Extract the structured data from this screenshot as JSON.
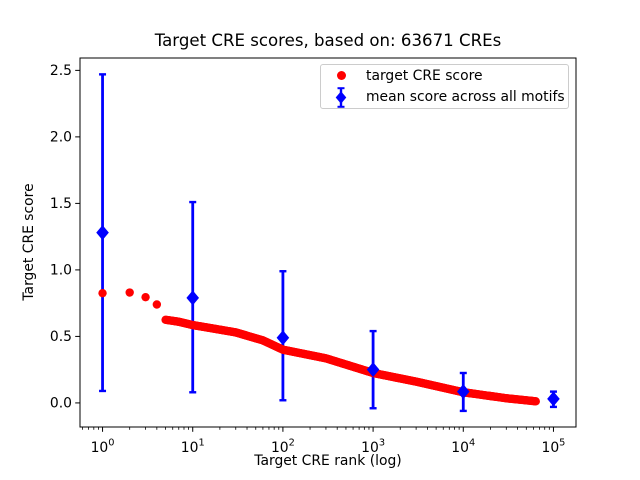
{
  "chart_data": {
    "type": "scatter",
    "title": "Target CRE scores, based on: 63671 CREs",
    "xlabel": "Target CRE rank (log)",
    "ylabel": "Target CRE score",
    "x_scale": "log",
    "x_axis": {
      "lim_log10": [
        -0.25,
        5.25
      ],
      "major_ticks": [
        1,
        10,
        100,
        1000,
        10000,
        100000
      ],
      "tick_label_base": "10",
      "tick_label_exponents": [
        "0",
        "1",
        "2",
        "3",
        "4",
        "5"
      ],
      "minor_ticks": "log decades k*10^n, k=2..9"
    },
    "y_axis": {
      "lim": [
        -0.181,
        2.593
      ],
      "ticks": [
        0.0,
        0.5,
        1.0,
        1.5,
        2.0,
        2.5
      ],
      "tick_labels": [
        "0.0",
        "0.5",
        "1.0",
        "1.5",
        "2.0",
        "2.5"
      ]
    },
    "grid": false,
    "legend": {
      "position": "upper right",
      "entries": [
        "target CRE score",
        "mean score across all motifs"
      ]
    },
    "series": [
      {
        "name": "target CRE score",
        "marker": "circle",
        "color": "#ff0000",
        "lead_points": [
          [
            1,
            0.825
          ],
          [
            2,
            0.83
          ],
          [
            3,
            0.795
          ],
          [
            4,
            0.74
          ]
        ],
        "band": {
          "from_rank": 5,
          "to_rank": 63671,
          "anchors": [
            [
              5,
              0.625
            ],
            [
              7,
              0.61
            ],
            [
              10,
              0.585
            ],
            [
              15,
              0.565
            ],
            [
              30,
              0.53
            ],
            [
              60,
              0.47
            ],
            [
              100,
              0.4
            ],
            [
              300,
              0.335
            ],
            [
              1000,
              0.225
            ],
            [
              3000,
              0.16
            ],
            [
              10000,
              0.08
            ],
            [
              30000,
              0.035
            ],
            [
              63671,
              0.012
            ]
          ]
        }
      },
      {
        "name": "mean score across all motifs",
        "marker": "diamond",
        "color": "#0000ff",
        "points": [
          {
            "x": 1,
            "y": 1.28,
            "err_low": 0.09,
            "err_high": 2.47
          },
          {
            "x": 10,
            "y": 0.79,
            "err_low": 0.08,
            "err_high": 1.51
          },
          {
            "x": 100,
            "y": 0.49,
            "err_low": 0.02,
            "err_high": 0.99
          },
          {
            "x": 1000,
            "y": 0.25,
            "err_low": -0.04,
            "err_high": 0.54
          },
          {
            "x": 10000,
            "y": 0.085,
            "err_low": -0.06,
            "err_high": 0.225
          },
          {
            "x": 100000,
            "y": 0.03,
            "err_low": -0.03,
            "err_high": 0.085
          }
        ]
      }
    ],
    "colors": {
      "background": "#ffffff",
      "axes": "#000000",
      "text": "#000000",
      "legend_border": "#cccccc",
      "target_series": "#ff0000",
      "mean_series": "#0000ff"
    }
  }
}
